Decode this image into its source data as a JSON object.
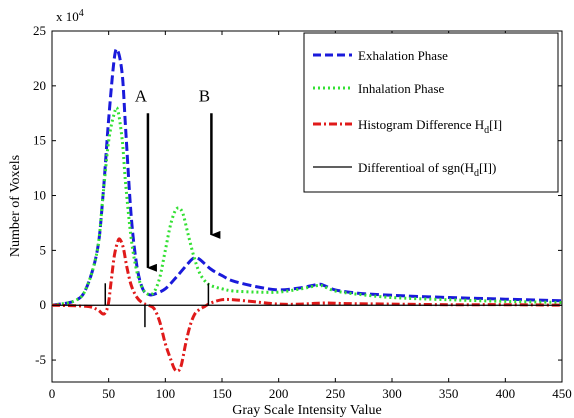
{
  "chart_data": {
    "type": "line",
    "xlabel": "Gray Scale Intensity Value",
    "ylabel": "Number of Voxels",
    "exponent_label": "x 10",
    "exponent_power": "4",
    "xlim": [
      0,
      450
    ],
    "ylim": [
      -7,
      25
    ],
    "x_ticks": [
      "0",
      "50",
      "100",
      "150",
      "200",
      "250",
      "300",
      "350",
      "400",
      "450"
    ],
    "y_ticks": [
      "-5",
      "0",
      "5",
      "10",
      "15",
      "20",
      "25"
    ],
    "grid": false,
    "legend_position": "top-right",
    "series": [
      {
        "name": "Exhalation Phase",
        "color": "#1a1adb",
        "style": "dashed",
        "x": [
          0,
          20,
          30,
          40,
          45,
          50,
          55,
          58,
          62,
          65,
          70,
          75,
          80,
          85,
          90,
          100,
          110,
          120,
          125,
          130,
          140,
          150,
          160,
          180,
          200,
          220,
          235,
          240,
          250,
          270,
          300,
          350,
          400,
          450
        ],
        "y": [
          0,
          0.4,
          1.5,
          5,
          10,
          17,
          22.5,
          23.2,
          21,
          16,
          8,
          3.5,
          1.5,
          1,
          1,
          1.5,
          2.6,
          3.8,
          4.3,
          4.2,
          3.3,
          2.7,
          2.2,
          1.7,
          1.4,
          1.6,
          1.9,
          1.8,
          1.4,
          1.1,
          0.9,
          0.7,
          0.55,
          0.4
        ]
      },
      {
        "name": "Inhalation Phase",
        "color": "#33e033",
        "style": "dotted",
        "x": [
          0,
          20,
          30,
          40,
          45,
          50,
          55,
          58,
          62,
          65,
          70,
          75,
          80,
          85,
          90,
          95,
          100,
          105,
          110,
          115,
          120,
          125,
          130,
          135,
          140,
          150,
          160,
          180,
          200,
          220,
          235,
          240,
          250,
          270,
          300,
          350,
          400,
          450
        ],
        "y": [
          0,
          0.4,
          1.5,
          5,
          10,
          15,
          17.5,
          17.8,
          15,
          11,
          6,
          3,
          1.5,
          1,
          1.2,
          2.5,
          5,
          7.5,
          8.8,
          8.5,
          6.5,
          4.5,
          3,
          2.2,
          1.8,
          1.5,
          1.3,
          1.2,
          1.2,
          1.5,
          1.8,
          1.7,
          1.3,
          1,
          0.7,
          0.5,
          0.35,
          0.25
        ]
      },
      {
        "name": "Histogram Difference H",
        "name_subscript": "d",
        "name_suffix": "[I]",
        "color": "#e01a1a",
        "style": "dashdot",
        "x": [
          0,
          30,
          40,
          45,
          48,
          50,
          52,
          55,
          58,
          60,
          63,
          66,
          70,
          75,
          80,
          85,
          90,
          95,
          100,
          105,
          108,
          111,
          114,
          118,
          122,
          126,
          130,
          135,
          140,
          150,
          160,
          180,
          200,
          220,
          240,
          260,
          300,
          350,
          400,
          450
        ],
        "y": [
          0,
          -0.1,
          -0.4,
          -0.8,
          -0.5,
          0.3,
          2,
          4.5,
          5.8,
          6,
          5.2,
          3.5,
          1.8,
          0.7,
          0.2,
          0,
          -0.3,
          -1.5,
          -3.5,
          -5,
          -5.8,
          -6,
          -5.5,
          -3.5,
          -1.8,
          -0.8,
          -0.4,
          -0.1,
          0.2,
          0.5,
          0.5,
          0.3,
          0.1,
          0.1,
          0.2,
          0.15,
          0.1,
          0.05,
          0.05,
          0
        ]
      },
      {
        "name": "Differentioal of sgn(H",
        "name_subscript": "d",
        "name_suffix": "[I])",
        "color": "#000000",
        "style": "solid",
        "baseline_y": 0,
        "spikes": [
          {
            "x": 47,
            "y": 2
          },
          {
            "x": 82,
            "y": -2
          },
          {
            "x": 138,
            "y": 2
          }
        ]
      }
    ],
    "annotations": [
      {
        "label": "A",
        "x": 82,
        "arrow_from_y": 17.5,
        "arrow_to_y": 2.5
      },
      {
        "label": "B",
        "x": 138,
        "arrow_from_y": 17.5,
        "arrow_to_y": 5.5
      }
    ]
  }
}
